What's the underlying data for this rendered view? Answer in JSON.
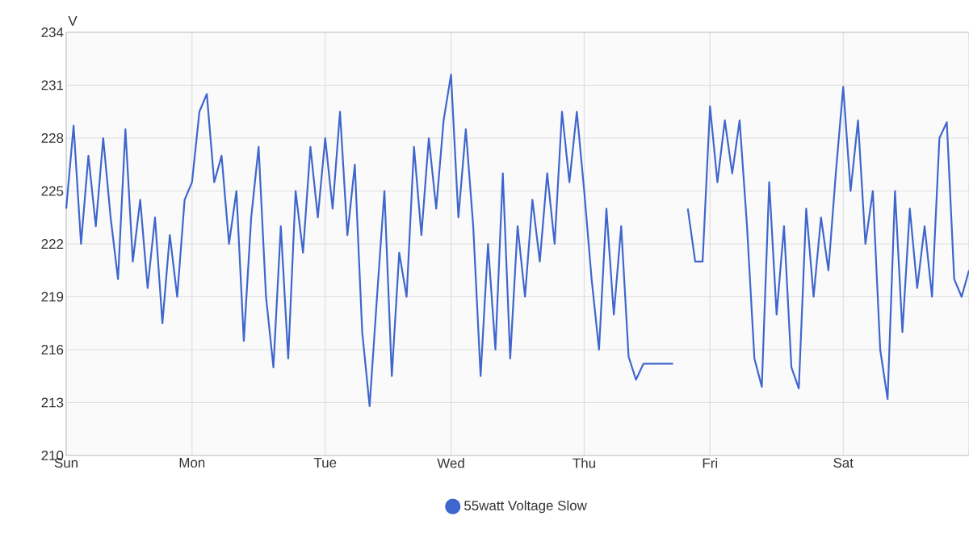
{
  "chart_data": {
    "type": "line",
    "ylabel": "V",
    "categories": [
      "Sun",
      null,
      null,
      null,
      null,
      null,
      null,
      null,
      null,
      null,
      null,
      null,
      null,
      null,
      null,
      null,
      null,
      "Mon",
      null,
      null,
      null,
      null,
      null,
      null,
      null,
      null,
      null,
      null,
      null,
      null,
      null,
      null,
      null,
      null,
      null,
      "Tue",
      null,
      null,
      null,
      null,
      null,
      null,
      null,
      null,
      null,
      null,
      null,
      null,
      null,
      null,
      null,
      null,
      "Wed",
      null,
      null,
      null,
      null,
      null,
      null,
      null,
      null,
      null,
      null,
      null,
      null,
      null,
      null,
      null,
      null,
      null,
      "Thu",
      null,
      null,
      null,
      null,
      null,
      null,
      null,
      null,
      null,
      null,
      null,
      null,
      null,
      null,
      null,
      null,
      "Fri",
      null,
      null,
      null,
      null,
      null,
      null,
      null,
      null,
      null,
      null,
      null,
      null,
      null,
      null,
      null,
      null,
      null,
      "Sat",
      null,
      null,
      null,
      null,
      null,
      null,
      null,
      null,
      null,
      null,
      null,
      null,
      null,
      null,
      null,
      null,
      null
    ],
    "ylim": [
      210,
      234
    ],
    "yticks": [
      210,
      213,
      216,
      219,
      222,
      225,
      228,
      231,
      234
    ],
    "grid": true,
    "legend": "bottom",
    "marker": "none",
    "line_style": "solid",
    "series": [
      {
        "name": "55watt Voltage Slow",
        "color": "#3f66cc",
        "values": [
          224,
          228.7,
          222,
          227,
          223,
          228,
          223.5,
          220,
          228.5,
          221,
          224.5,
          219.5,
          223.5,
          217.5,
          222.5,
          219,
          224.5,
          225.5,
          229.5,
          230.5,
          225.5,
          227,
          222,
          225,
          216.5,
          223.5,
          227.5,
          219,
          215,
          223,
          215.5,
          225,
          221.5,
          227.5,
          223.5,
          228,
          224,
          229.5,
          222.5,
          226.5,
          217,
          212.8,
          219,
          225,
          214.5,
          221.5,
          219,
          227.5,
          222.5,
          228,
          224,
          229,
          231.6,
          223.5,
          228.5,
          223,
          214.5,
          222,
          216,
          226,
          215.5,
          223,
          219,
          224.5,
          221,
          226,
          222,
          229.5,
          225.5,
          229.5,
          225,
          220,
          216,
          224,
          218,
          223,
          215.6,
          214.3,
          215.2,
          215.2,
          215.2,
          215.2,
          215.2,
          null,
          224,
          221,
          221,
          229.8,
          225.5,
          229,
          226,
          229,
          223,
          215.5,
          213.9,
          225.5,
          218,
          223,
          215,
          213.8,
          224,
          219,
          223.5,
          220.5,
          226,
          230.9,
          225,
          229,
          222,
          225,
          216,
          213.2,
          225,
          217,
          224,
          219.5,
          223,
          219,
          228,
          228.9,
          220,
          219,
          220.5
        ]
      }
    ]
  }
}
